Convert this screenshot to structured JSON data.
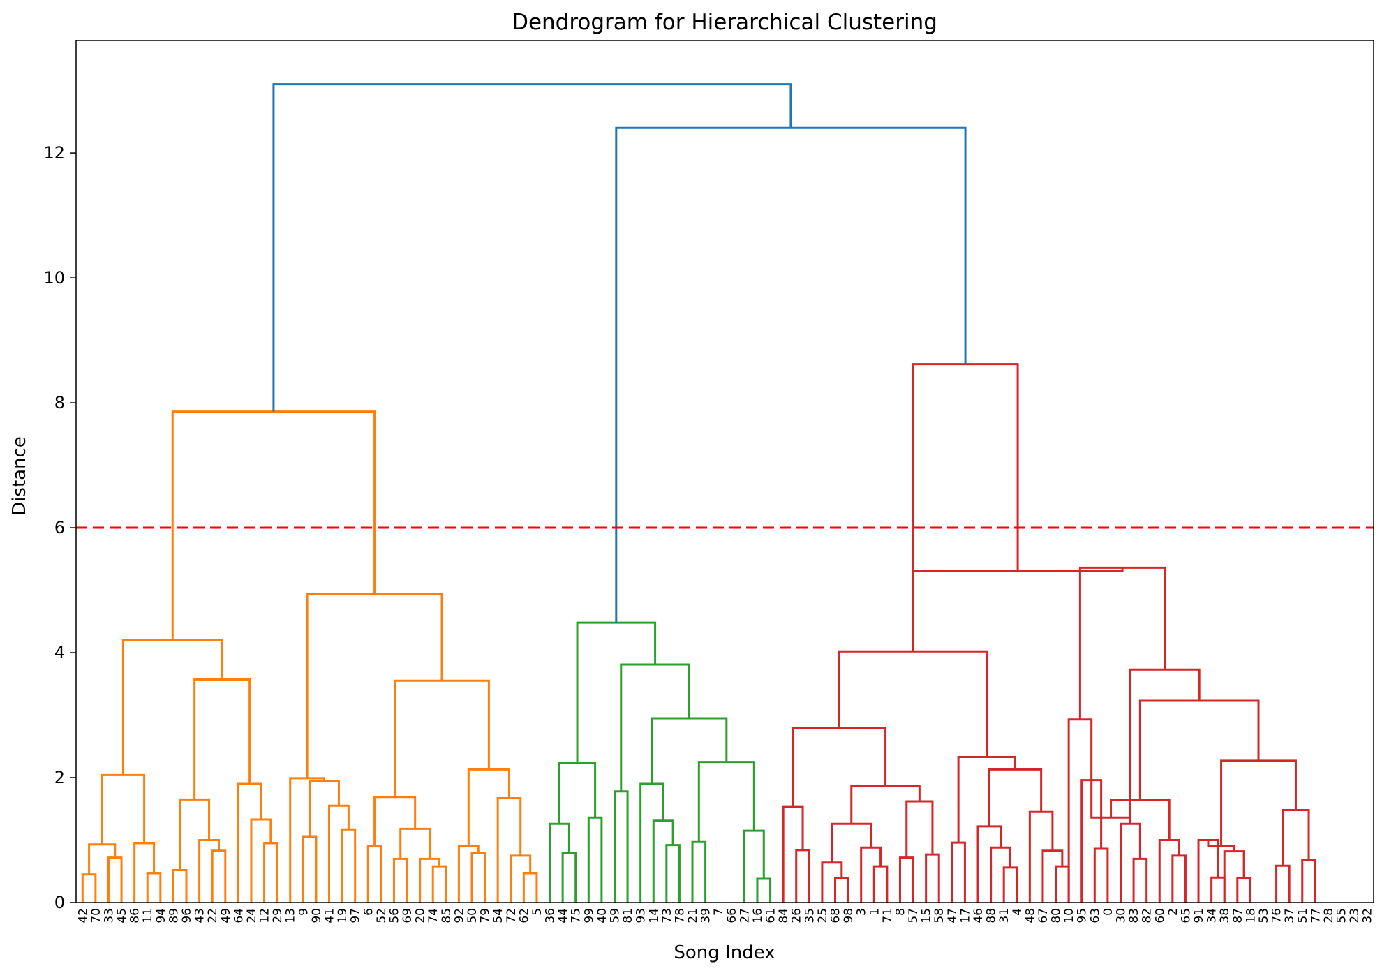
{
  "chart_data": {
    "type": "dendrogram",
    "title": "Dendrogram for Hierarchical Clustering",
    "xlabel": "Song Index",
    "ylabel": "Distance",
    "ylim": [
      0,
      13.8
    ],
    "yticks": [
      0,
      2,
      4,
      6,
      8,
      10,
      12
    ],
    "grid": false,
    "threshold": {
      "value": 6,
      "color": "#ff0000",
      "style": "dashed"
    },
    "colors": {
      "orange": "#ff7f0e",
      "green": "#2ca02c",
      "red": "#d62728",
      "blue": "#1f77b4"
    },
    "leaves": [
      "42",
      "70",
      "33",
      "45",
      "86",
      "11",
      "94",
      "89",
      "96",
      "43",
      "22",
      "49",
      "64",
      "24",
      "12",
      "29",
      "13",
      "9",
      "90",
      "41",
      "19",
      "97",
      "6",
      "52",
      "56",
      "69",
      "20",
      "74",
      "85",
      "92",
      "50",
      "79",
      "54",
      "72",
      "62",
      "5",
      "36",
      "44",
      "75",
      "99",
      "40",
      "59",
      "81",
      "93",
      "14",
      "73",
      "78",
      "21",
      "39",
      "7",
      "66",
      "27",
      "16",
      "61",
      "84",
      "26",
      "35",
      "25",
      "68",
      "98",
      "3",
      "1",
      "71",
      "8",
      "57",
      "15",
      "58",
      "47",
      "17",
      "46",
      "88",
      "31",
      "4",
      "48",
      "67",
      "80",
      "10",
      "95",
      "63",
      "0",
      "30",
      "83",
      "82",
      "60",
      "2",
      "65",
      "91",
      "34",
      "38",
      "87",
      "18",
      "53",
      "76",
      "37",
      "51",
      "77",
      "28",
      "55",
      "23",
      "32"
    ],
    "links": [
      {
        "l": 0,
        "r": 1,
        "h": 0.45,
        "c": "orange"
      },
      {
        "l": 2,
        "r": 3,
        "h": 0.72,
        "c": "orange"
      },
      {
        "l": 100,
        "r": 101,
        "h": 0.93,
        "c": "orange"
      },
      {
        "l": 5,
        "r": 6,
        "h": 0.47,
        "c": "orange"
      },
      {
        "l": 4,
        "r": 103,
        "h": 0.95,
        "c": "orange"
      },
      {
        "l": 102,
        "r": 104,
        "h": 2.04,
        "c": "orange"
      },
      {
        "l": 7,
        "r": 8,
        "h": 0.52,
        "c": "orange"
      },
      {
        "l": 10,
        "r": 11,
        "h": 0.83,
        "c": "orange"
      },
      {
        "l": 9,
        "r": 107,
        "h": 1.0,
        "c": "orange"
      },
      {
        "l": 106,
        "r": 108,
        "h": 1.65,
        "c": "orange"
      },
      {
        "l": 14,
        "r": 15,
        "h": 0.95,
        "c": "orange"
      },
      {
        "l": 13,
        "r": 110,
        "h": 1.33,
        "c": "orange"
      },
      {
        "l": 12,
        "r": 111,
        "h": 1.9,
        "c": "orange"
      },
      {
        "l": 109,
        "r": 112,
        "h": 3.57,
        "c": "orange"
      },
      {
        "l": 105,
        "r": 113,
        "h": 4.2,
        "c": "orange"
      },
      {
        "l": 17,
        "r": 18,
        "h": 1.05,
        "c": "orange"
      },
      {
        "l": 20,
        "r": 21,
        "h": 1.17,
        "c": "orange"
      },
      {
        "l": 19,
        "r": 116,
        "h": 1.55,
        "c": "orange"
      },
      {
        "l": 115,
        "r": 117,
        "h": 1.95,
        "c": "orange"
      },
      {
        "l": 118,
        "r": 16,
        "h": 1.99,
        "c": "orange"
      },
      {
        "l": 22,
        "r": 23,
        "h": 0.9,
        "c": "orange"
      },
      {
        "l": 24,
        "r": 25,
        "h": 0.7,
        "c": "orange"
      },
      {
        "l": 27,
        "r": 28,
        "h": 0.58,
        "c": "orange"
      },
      {
        "l": 26,
        "r": 122,
        "h": 0.7,
        "c": "orange"
      },
      {
        "l": 121,
        "r": 123,
        "h": 1.18,
        "c": "orange"
      },
      {
        "l": 120,
        "r": 124,
        "h": 1.69,
        "c": "orange"
      },
      {
        "l": 30,
        "r": 31,
        "h": 0.79,
        "c": "orange"
      },
      {
        "l": 29,
        "r": 126,
        "h": 0.9,
        "c": "orange"
      },
      {
        "l": 34,
        "r": 35,
        "h": 0.47,
        "c": "orange"
      },
      {
        "l": 33,
        "r": 128,
        "h": 0.75,
        "c": "orange"
      },
      {
        "l": 32,
        "r": 129,
        "h": 1.67,
        "c": "orange"
      },
      {
        "l": 127,
        "r": 130,
        "h": 2.13,
        "c": "orange"
      },
      {
        "l": 125,
        "r": 131,
        "h": 3.55,
        "c": "orange"
      },
      {
        "l": 119,
        "r": 132,
        "h": 4.94,
        "c": "orange"
      },
      {
        "l": 114,
        "r": 133,
        "h": 7.86,
        "c": "orange"
      },
      {
        "l": 37,
        "r": 38,
        "h": 0.79,
        "c": "green"
      },
      {
        "l": 36,
        "r": 135,
        "h": 1.26,
        "c": "green"
      },
      {
        "l": 39,
        "r": 40,
        "h": 1.36,
        "c": "green"
      },
      {
        "l": 136,
        "r": 137,
        "h": 2.23,
        "c": "green"
      },
      {
        "l": 41,
        "r": 42,
        "h": 1.78,
        "c": "green"
      },
      {
        "l": 45,
        "r": 46,
        "h": 0.92,
        "c": "green"
      },
      {
        "l": 44,
        "r": 140,
        "h": 1.31,
        "c": "green"
      },
      {
        "l": 43,
        "r": 141,
        "h": 1.9,
        "c": "green"
      },
      {
        "l": 47,
        "r": 48,
        "h": 0.97,
        "c": "green"
      },
      {
        "l": 53,
        "r": 52,
        "h": 0.38,
        "c": "green"
      },
      {
        "l": 51,
        "r": 144,
        "h": 1.15,
        "c": "green"
      },
      {
        "l": 143,
        "r": 145,
        "h": 2.25,
        "c": "green"
      },
      {
        "l": 142,
        "r": 146,
        "h": 2.95,
        "c": "green"
      },
      {
        "l": 139,
        "r": 147,
        "h": 3.81,
        "c": "green"
      },
      {
        "l": 138,
        "r": 148,
        "h": 4.48,
        "c": "green"
      },
      {
        "l": 55,
        "r": 56,
        "h": 0.84,
        "c": "red"
      },
      {
        "l": 54,
        "r": 150,
        "h": 1.53,
        "c": "red"
      },
      {
        "l": 58,
        "r": 59,
        "h": 0.39,
        "c": "red"
      },
      {
        "l": 57,
        "r": 152,
        "h": 0.64,
        "c": "red"
      },
      {
        "l": 61,
        "r": 62,
        "h": 0.58,
        "c": "red"
      },
      {
        "l": 60,
        "r": 154,
        "h": 0.88,
        "c": "red"
      },
      {
        "l": 153,
        "r": 155,
        "h": 1.26,
        "c": "red"
      },
      {
        "l": 63,
        "r": 64,
        "h": 0.72,
        "c": "red"
      },
      {
        "l": 65,
        "r": 66,
        "h": 0.77,
        "c": "red"
      },
      {
        "l": 157,
        "r": 158,
        "h": 1.62,
        "c": "red"
      },
      {
        "l": 156,
        "r": 159,
        "h": 1.87,
        "c": "red"
      },
      {
        "l": 151,
        "r": 160,
        "h": 2.79,
        "c": "red"
      },
      {
        "l": 67,
        "r": 68,
        "h": 0.96,
        "c": "red"
      },
      {
        "l": 71,
        "r": 72,
        "h": 0.56,
        "c": "red"
      },
      {
        "l": 70,
        "r": 163,
        "h": 0.88,
        "c": "red"
      },
      {
        "l": 69,
        "r": 164,
        "h": 1.22,
        "c": "red"
      },
      {
        "l": 75,
        "r": 76,
        "h": 0.58,
        "c": "red"
      },
      {
        "l": 74,
        "r": 166,
        "h": 0.83,
        "c": "red"
      },
      {
        "l": 73,
        "r": 167,
        "h": 1.45,
        "c": "red"
      },
      {
        "l": 165,
        "r": 168,
        "h": 2.13,
        "c": "red"
      },
      {
        "l": 162,
        "r": 169,
        "h": 2.33,
        "c": "red"
      },
      {
        "l": 161,
        "r": 170,
        "h": 4.02,
        "c": "red"
      },
      {
        "l": 78,
        "r": 79,
        "h": 0.86,
        "c": "red"
      },
      {
        "l": 172,
        "r": 77,
        "h": 1.96,
        "c": "red"
      },
      {
        "l": 76,
        "r": 173,
        "h": 2.93,
        "c": "red"
      },
      {
        "l": 81,
        "r": 82,
        "h": 0.7,
        "c": "red"
      },
      {
        "l": 80,
        "r": 175,
        "h": 1.26,
        "c": "red"
      },
      {
        "l": 173,
        "r": 176,
        "h": 1.36,
        "c": "red"
      },
      {
        "l": 84,
        "r": 85,
        "h": 0.75,
        "c": "red"
      },
      {
        "l": 83,
        "r": 178,
        "h": 1.0,
        "c": "red"
      },
      {
        "l": 177,
        "r": 179,
        "h": 1.64,
        "c": "red"
      },
      {
        "l": 87,
        "r": 88,
        "h": 0.4,
        "c": "red"
      },
      {
        "l": 86,
        "r": 181,
        "h": 1.0,
        "c": "red"
      },
      {
        "l": 89,
        "r": 90,
        "h": 0.39,
        "c": "red"
      },
      {
        "l": 88,
        "r": 183,
        "h": 0.82,
        "c": "red"
      },
      {
        "l": 182,
        "r": 184,
        "h": 0.91,
        "c": "red"
      },
      {
        "l": 92,
        "r": 93,
        "h": 0.59,
        "c": "red"
      },
      {
        "l": 94,
        "r": 95,
        "h": 0.68,
        "c": "red"
      },
      {
        "l": 186,
        "r": 187,
        "h": 1.48,
        "c": "red"
      },
      {
        "l": 185,
        "r": 188,
        "h": 2.27,
        "c": "red"
      },
      {
        "l": 180,
        "r": 189,
        "h": 3.23,
        "c": "red"
      },
      {
        "l": 176,
        "r": 190,
        "h": 3.73,
        "c": "red"
      },
      {
        "l": 174,
        "r": 191,
        "h": 5.36,
        "c": "red"
      },
      {
        "l": 171,
        "r": 192,
        "h": 5.31,
        "c": "red"
      },
      {
        "l": 171,
        "r": 193,
        "h": 8.62,
        "c": "red"
      },
      {
        "l": 149,
        "r": 194,
        "h": 12.4,
        "c": "blue"
      },
      {
        "l": 134,
        "r": 195,
        "h": 13.1,
        "c": "blue"
      }
    ]
  }
}
